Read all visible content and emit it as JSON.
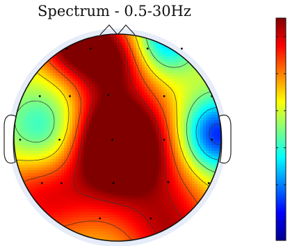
{
  "chart_data": {
    "type": "heatmap",
    "subtype": "scalp-topography",
    "title": "Spectrum - 0.5-30Hz",
    "colormap": "jet",
    "colorbar_ticks": 6,
    "head": {
      "nose": "top",
      "ears": "left-right"
    },
    "electrodes": [
      {
        "id": "e1",
        "x": -0.26,
        "y": 0.86
      },
      {
        "id": "e2",
        "x": 0.29,
        "y": 0.86
      },
      {
        "id": "e3",
        "x": -0.09,
        "y": 0.41
      },
      {
        "id": "e4",
        "x": 0.45,
        "y": 0.4
      },
      {
        "id": "e5",
        "x": -0.46,
        "y": 0.4
      },
      {
        "id": "e6",
        "x": -0.56,
        "y": -0.02
      },
      {
        "id": "e7",
        "x": -0.05,
        "y": -0.02
      },
      {
        "id": "e8",
        "x": 0.45,
        "y": -0.02
      },
      {
        "id": "e9",
        "x": -0.54,
        "y": -0.44
      },
      {
        "id": "e10",
        "x": -0.04,
        "y": -0.44
      },
      {
        "id": "e11",
        "x": 0.49,
        "y": -0.43
      },
      {
        "id": "e12",
        "x": -0.17,
        "y": -0.78
      },
      {
        "id": "e13",
        "x": 0.32,
        "y": -0.78
      },
      {
        "id": "e14",
        "x": -0.75,
        "y": 0.4
      },
      {
        "id": "e15",
        "x": 0.91,
        "y": 0.4
      },
      {
        "id": "e16",
        "x": -0.94,
        "y": -0.02
      },
      {
        "id": "e17",
        "x": 0.91,
        "y": -0.02
      },
      {
        "id": "e18",
        "x": -0.73,
        "y": -0.44
      },
      {
        "id": "e19",
        "x": 0.88,
        "y": -0.44
      },
      {
        "id": "e20",
        "x": -0.49,
        "y": 0.86
      },
      {
        "id": "e21",
        "x": 0.62,
        "y": 0.86
      }
    ],
    "sources": [
      {
        "x": -0.05,
        "y": 0.0,
        "value": 1.0,
        "width": 0.33
      },
      {
        "x": 0.2,
        "y": -0.3,
        "value": 0.55,
        "width": 0.45
      },
      {
        "x": -0.05,
        "y": 0.75,
        "value": 0.65,
        "width": 0.25
      },
      {
        "x": -0.65,
        "y": 0.04,
        "value": -0.62,
        "width": 0.3
      },
      {
        "x": 0.95,
        "y": 0.02,
        "value": -1.0,
        "width": 0.26
      },
      {
        "x": 0.45,
        "y": 0.92,
        "value": -0.62,
        "width": 0.22
      },
      {
        "x": -0.42,
        "y": 0.95,
        "value": 0.85,
        "width": 0.25
      },
      {
        "x": -0.75,
        "y": -0.55,
        "value": 0.55,
        "width": 0.35
      },
      {
        "x": 0.55,
        "y": -0.95,
        "value": 0.5,
        "width": 0.3
      }
    ],
    "scale_min": -1.0,
    "scale_max": 1.0,
    "contour_levels": [
      -0.9,
      -0.6,
      -0.3,
      0.0,
      0.3,
      0.6,
      0.85
    ]
  }
}
